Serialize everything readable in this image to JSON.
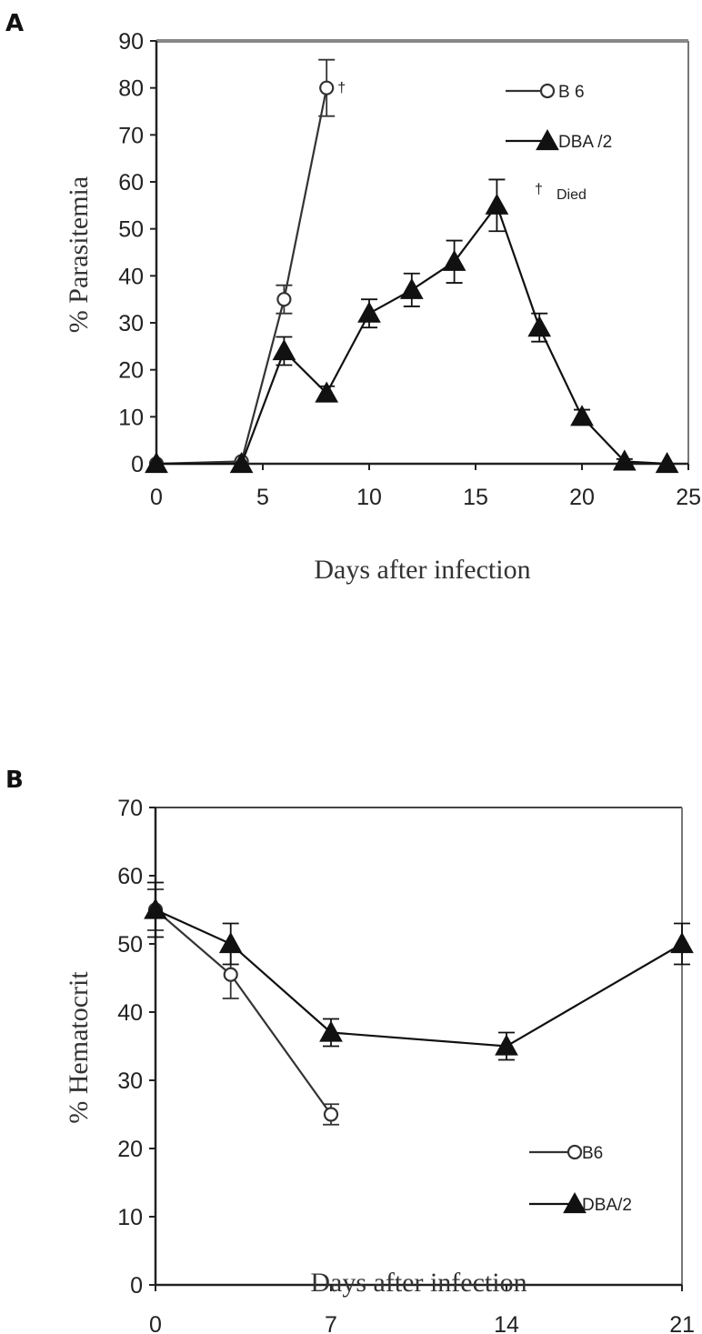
{
  "chart_data": [
    {
      "panel": "A",
      "type": "line",
      "xlabel": "Days after infection",
      "ylabel": "% Parasitemia",
      "xlim": [
        0,
        25
      ],
      "ylim": [
        0,
        90
      ],
      "xticks": [
        0,
        5,
        10,
        15,
        20,
        25
      ],
      "yticks": [
        0,
        10,
        20,
        30,
        40,
        50,
        60,
        70,
        80,
        90
      ],
      "grid": false,
      "legend_position": "top-right",
      "series": [
        {
          "name": "B 6",
          "marker": "circle-open",
          "color": "#333333",
          "points": [
            {
              "x": 0,
              "y": 0,
              "err": 0
            },
            {
              "x": 4,
              "y": 0.5,
              "err": 0
            },
            {
              "x": 6,
              "y": 35,
              "err": 3
            },
            {
              "x": 8,
              "y": 80,
              "err": 6
            }
          ]
        },
        {
          "name": "DBA /2",
          "marker": "triangle-filled",
          "color": "#111111",
          "points": [
            {
              "x": 0,
              "y": 0,
              "err": 0
            },
            {
              "x": 4,
              "y": 0,
              "err": 0
            },
            {
              "x": 6,
              "y": 24,
              "err": 3
            },
            {
              "x": 8,
              "y": 15,
              "err": 1.5
            },
            {
              "x": 10,
              "y": 32,
              "err": 3
            },
            {
              "x": 12,
              "y": 37,
              "err": 3.5
            },
            {
              "x": 14,
              "y": 43,
              "err": 4.5
            },
            {
              "x": 16,
              "y": 55,
              "err": 5.5
            },
            {
              "x": 18,
              "y": 29,
              "err": 3
            },
            {
              "x": 20,
              "y": 10,
              "err": 1.5
            },
            {
              "x": 22,
              "y": 0.5,
              "err": 0.5
            },
            {
              "x": 24,
              "y": 0,
              "err": 0
            }
          ]
        }
      ],
      "annotations": [
        {
          "text": "†",
          "x": 8,
          "y": 80
        },
        {
          "text": "†",
          "legend": "Died"
        }
      ],
      "legend_note": "Died"
    },
    {
      "panel": "B",
      "type": "line",
      "xlabel": "Days after infection",
      "ylabel": "% Hematocrit",
      "xlim": [
        0,
        21
      ],
      "ylim": [
        0,
        70
      ],
      "xticks": [
        0,
        7,
        14,
        21
      ],
      "yticks": [
        0,
        10,
        20,
        30,
        40,
        50,
        60,
        70
      ],
      "grid": false,
      "legend_position": "bottom-right",
      "series": [
        {
          "name": "B6",
          "marker": "circle-open",
          "color": "#333333",
          "points": [
            {
              "x": 0,
              "y": 55,
              "err": 3
            },
            {
              "x": 3,
              "y": 45.5,
              "err": 3.5
            },
            {
              "x": 7,
              "y": 25,
              "err": 1.5
            }
          ]
        },
        {
          "name": "DBA/2",
          "marker": "triangle-filled",
          "color": "#111111",
          "points": [
            {
              "x": 0,
              "y": 55,
              "err": 4
            },
            {
              "x": 3,
              "y": 50,
              "err": 3
            },
            {
              "x": 7,
              "y": 37,
              "err": 2
            },
            {
              "x": 14,
              "y": 35,
              "err": 2
            },
            {
              "x": 21,
              "y": 50,
              "err": 3
            }
          ]
        }
      ]
    }
  ]
}
